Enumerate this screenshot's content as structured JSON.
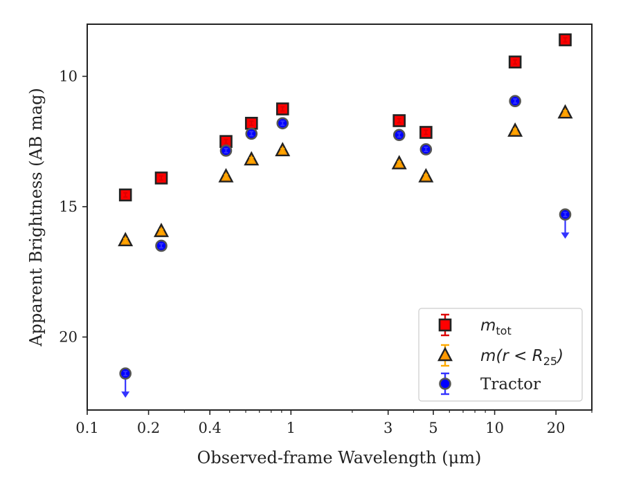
{
  "chart_data": {
    "type": "scatter",
    "xscale": "log",
    "yaxis_inverted": true,
    "xlim": [
      0.1,
      30
    ],
    "ylim": [
      22.8,
      8.0
    ],
    "xlabel": "Observed-frame Wavelength (μm)",
    "ylabel": "Apparent Brightness (AB mag)",
    "xticks": [
      {
        "value": 0.1,
        "label": "0.1"
      },
      {
        "value": 0.2,
        "label": "0.2"
      },
      {
        "value": 0.4,
        "label": "0.4"
      },
      {
        "value": 1,
        "label": "1"
      },
      {
        "value": 3,
        "label": "3"
      },
      {
        "value": 5,
        "label": "5"
      },
      {
        "value": 10,
        "label": "10"
      },
      {
        "value": 20,
        "label": "20"
      }
    ],
    "yticks": [
      {
        "value": 10,
        "label": "10"
      },
      {
        "value": 15,
        "label": "15"
      },
      {
        "value": 20,
        "label": "20"
      }
    ],
    "legend_position": "lower-right",
    "series": [
      {
        "name": "m_tot",
        "legend_label": {
          "main": "m",
          "sub": "tot"
        },
        "marker": "square",
        "color": "#ff0000",
        "errorbar_color": "#dd0000",
        "points": [
          {
            "x": 0.154,
            "y": 14.55
          },
          {
            "x": 0.231,
            "y": 13.9
          },
          {
            "x": 0.48,
            "y": 12.5
          },
          {
            "x": 0.64,
            "y": 11.8
          },
          {
            "x": 0.91,
            "y": 11.25
          },
          {
            "x": 3.4,
            "y": 11.7
          },
          {
            "x": 4.6,
            "y": 12.15
          },
          {
            "x": 12.6,
            "y": 9.45
          },
          {
            "x": 22.2,
            "y": 8.6
          }
        ]
      },
      {
        "name": "m(r < R25)",
        "legend_label": {
          "main": "m(r < R",
          "sub": "25",
          "tail": ")"
        },
        "marker": "triangle",
        "color": "#ff9900",
        "errorbar_color": "#ffaa00",
        "points": [
          {
            "x": 0.154,
            "y": 16.3
          },
          {
            "x": 0.231,
            "y": 15.95
          },
          {
            "x": 0.48,
            "y": 13.85
          },
          {
            "x": 0.64,
            "y": 13.2
          },
          {
            "x": 0.91,
            "y": 12.85
          },
          {
            "x": 3.4,
            "y": 13.35
          },
          {
            "x": 4.6,
            "y": 13.85
          },
          {
            "x": 12.6,
            "y": 12.1
          },
          {
            "x": 22.2,
            "y": 11.4
          }
        ]
      },
      {
        "name": "Tractor",
        "legend_label": {
          "main": "Tractor"
        },
        "marker": "circle",
        "color": "#0000ff",
        "errorbar_color": "#3333ff",
        "points": [
          {
            "x": 0.154,
            "y": 21.4,
            "upper_limit": true
          },
          {
            "x": 0.231,
            "y": 16.5
          },
          {
            "x": 0.48,
            "y": 12.85
          },
          {
            "x": 0.64,
            "y": 12.2
          },
          {
            "x": 0.91,
            "y": 11.8
          },
          {
            "x": 3.4,
            "y": 12.25
          },
          {
            "x": 4.6,
            "y": 12.8
          },
          {
            "x": 12.6,
            "y": 10.95
          },
          {
            "x": 22.2,
            "y": 15.3,
            "upper_limit": true
          }
        ]
      }
    ]
  }
}
